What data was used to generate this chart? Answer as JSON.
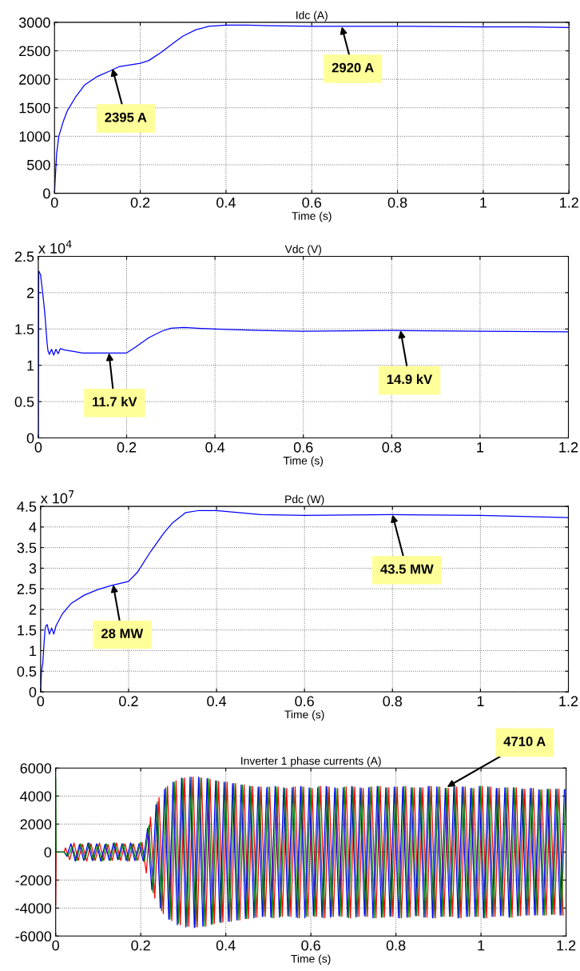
{
  "chart_data": [
    {
      "type": "line",
      "title": "Idc (A)",
      "xlabel": "Time (s)",
      "xlim": [
        0,
        1.2
      ],
      "xticks": [
        0,
        0.2,
        0.4,
        0.6,
        0.8,
        1,
        1.2
      ],
      "ylim": [
        0,
        3000
      ],
      "yticks": [
        0,
        500,
        1000,
        1500,
        2000,
        2500,
        3000
      ],
      "grid": true,
      "series": [
        {
          "color": "#0000ff",
          "x": [
            0,
            0.002,
            0.005,
            0.01,
            0.02,
            0.03,
            0.05,
            0.07,
            0.1,
            0.13,
            0.15,
            0.2,
            0.22,
            0.25,
            0.28,
            0.3,
            0.33,
            0.36,
            0.4,
            0.45,
            0.5,
            0.6,
            0.8,
            1.0,
            1.1,
            1.2
          ],
          "values": [
            0,
            300,
            700,
            1000,
            1250,
            1450,
            1700,
            1900,
            2050,
            2150,
            2220,
            2280,
            2330,
            2480,
            2650,
            2760,
            2870,
            2930,
            2950,
            2950,
            2940,
            2930,
            2930,
            2920,
            2920,
            2910
          ]
        }
      ],
      "annotations": [
        {
          "text": "2395 A",
          "x": 0.135,
          "y": 2190
        },
        {
          "text": "2920 A",
          "x": 0.67,
          "y": 2925
        }
      ]
    },
    {
      "type": "line",
      "title": "Vdc (V)",
      "xlabel": "Time (s)",
      "xlim": [
        0,
        1.2
      ],
      "xticks": [
        0,
        0.2,
        0.4,
        0.6,
        0.8,
        1,
        1.2
      ],
      "ylim": [
        0,
        2.5
      ],
      "yticks": [
        0,
        0.5,
        1,
        1.5,
        2,
        2.5
      ],
      "grid": true,
      "series": [
        {
          "color": "#0000ff",
          "x": [
            0,
            0.001,
            0.005,
            0.01,
            0.015,
            0.02,
            0.022,
            0.025,
            0.03,
            0.035,
            0.04,
            0.045,
            0.05,
            0.06,
            0.08,
            0.1,
            0.15,
            0.2,
            0.22,
            0.25,
            0.28,
            0.3,
            0.33,
            0.36,
            0.4,
            0.5,
            0.6,
            0.8,
            1.0,
            1.2
          ],
          "values": [
            0,
            2.3,
            2.25,
            2.0,
            1.7,
            1.3,
            1.2,
            1.15,
            1.22,
            1.14,
            1.22,
            1.16,
            1.23,
            1.21,
            1.19,
            1.17,
            1.17,
            1.17,
            1.25,
            1.38,
            1.47,
            1.51,
            1.52,
            1.51,
            1.5,
            1.48,
            1.47,
            1.48,
            1.47,
            1.46
          ]
        }
      ],
      "annotations": [
        "x 10$^{4}$",
        {
          "text": "11.7 kV",
          "x": 0.16,
          "y": 1.17
        },
        {
          "text": "14.9 kV",
          "x": 0.82,
          "y": 1.48
        }
      ]
    },
    {
      "type": "line",
      "title": "Pdc (W)",
      "xlabel": "Time (s)",
      "xlim": [
        0,
        1.2
      ],
      "xticks": [
        0,
        0.2,
        0.4,
        0.6,
        0.8,
        1,
        1.2
      ],
      "ylim": [
        0,
        4.5
      ],
      "yticks": [
        0,
        0.5,
        1,
        1.5,
        2,
        2.5,
        3,
        3.5,
        4,
        4.5
      ],
      "grid": true,
      "series": [
        {
          "color": "#0000ff",
          "x": [
            0,
            0.002,
            0.005,
            0.008,
            0.01,
            0.012,
            0.015,
            0.02,
            0.025,
            0.03,
            0.035,
            0.05,
            0.07,
            0.1,
            0.13,
            0.16,
            0.2,
            0.22,
            0.25,
            0.28,
            0.3,
            0.33,
            0.36,
            0.4,
            0.45,
            0.5,
            0.6,
            0.8,
            1.0,
            1.2
          ],
          "values": [
            0,
            0.5,
            0.7,
            1.2,
            1.5,
            1.6,
            1.63,
            1.4,
            1.55,
            1.4,
            1.6,
            1.9,
            2.15,
            2.35,
            2.48,
            2.58,
            2.68,
            2.9,
            3.4,
            3.85,
            4.1,
            4.35,
            4.4,
            4.4,
            4.35,
            4.3,
            4.28,
            4.3,
            4.28,
            4.23
          ]
        }
      ],
      "annotations": [
        "x 10$^{7}$",
        {
          "text": "28 MW",
          "x": 0.165,
          "y": 2.6
        },
        {
          "text": "43.5 MW",
          "x": 0.8,
          "y": 4.3
        }
      ]
    },
    {
      "type": "line",
      "title": "Inverter 1 phase currents (A)",
      "xlabel": "Time (s)",
      "xlim": [
        0,
        1.2
      ],
      "xticks": [
        0,
        0.2,
        0.4,
        0.6,
        0.8,
        1,
        1.2
      ],
      "ylim": [
        -6000,
        6000
      ],
      "yticks": [
        -6000,
        -4000,
        -2000,
        0,
        2000,
        4000,
        6000
      ],
      "grid": true,
      "series": [
        {
          "color": "#ff0000",
          "x": [
            0,
            0.001,
            0.02,
            0.023,
            0.033,
            0.043,
            0.053,
            0.063,
            0.073,
            0.083,
            0.093,
            0.103,
            0.113,
            0.123,
            0.133,
            0.143,
            0.153,
            0.163,
            0.173,
            0.183,
            0.193,
            0.203,
            0.213,
            0.223,
            0.233,
            0.243,
            0.253,
            0.263,
            0.273,
            0.283,
            0.293,
            0.303,
            0.313,
            0.323,
            0.333,
            0.343,
            0.353,
            0.363,
            0.373,
            0.383,
            0.393,
            0.403,
            0.413,
            0.423,
            0.433,
            0.443,
            0.453,
            0.463,
            0.473,
            0.483,
            0.493,
            0.503,
            0.513,
            0.523,
            0.533,
            0.543,
            0.553,
            0.563,
            0.573,
            0.583,
            0.593,
            0.603,
            0.613,
            0.623,
            0.633,
            0.643,
            0.653,
            0.663,
            0.673,
            0.683,
            0.693,
            0.703,
            0.713,
            0.723,
            0.733,
            0.743,
            0.753,
            0.763,
            0.773,
            0.783,
            0.793,
            0.803,
            0.813,
            0.823,
            0.833,
            0.843,
            0.853,
            0.863,
            0.873,
            0.883,
            0.893,
            0.903,
            0.913,
            0.923,
            0.933,
            0.943,
            0.953,
            0.963,
            0.973,
            0.983,
            0.993,
            1.003,
            1.013,
            1.023,
            1.033,
            1.043,
            1.053,
            1.063,
            1.073,
            1.083,
            1.093,
            1.103,
            1.113,
            1.123,
            1.133,
            1.143,
            1.153,
            1.163,
            1.173,
            1.183,
            1.193
          ],
          "values": [
            -3800,
            0,
            0,
            300,
            -550,
            650,
            -600,
            550,
            -650,
            600,
            -600,
            650,
            -600,
            550,
            -600,
            650,
            -600,
            600,
            -650,
            600,
            -600,
            700,
            -1500,
            2500,
            -3300,
            3900,
            -4400,
            4700,
            -4900,
            5100,
            -5200,
            5300,
            -5300,
            5350,
            -5350,
            5300,
            -5300,
            5200,
            -5100,
            5050,
            -5000,
            5000,
            -4950,
            4900,
            -4850,
            4800,
            -4750,
            4700,
            -4650,
            4650,
            -4600,
            4650,
            -4700,
            4650,
            -4600,
            4550,
            -4600,
            4650,
            -4700,
            4650,
            -4600,
            4550,
            -4600,
            4700,
            -4700,
            4650,
            -4600,
            4550,
            -4600,
            4650,
            -4700,
            4650,
            -4600,
            4550,
            -4600,
            4650,
            -4700,
            4700,
            -4650,
            4600,
            -4600,
            4650,
            -4700,
            4700,
            -4650,
            4600,
            -4550,
            4600,
            -4650,
            4700,
            -4700,
            4650,
            -4600,
            4550,
            -4600,
            4650,
            -4700,
            4650,
            -4600,
            4550,
            -4600,
            4700,
            -4700,
            4650,
            -4600,
            4550,
            -4550,
            4600,
            -4650,
            4600,
            -4550,
            4500,
            -4500,
            4550,
            -4500,
            4450,
            -4500,
            4500,
            -4450,
            4500,
            -4500
          ]
        },
        {
          "color": "#0000ff",
          "x": [
            0,
            0.02,
            0.026,
            0.036,
            0.046,
            0.056,
            0.066,
            0.076,
            0.086,
            0.096,
            0.106,
            0.116,
            0.126,
            0.136,
            0.146,
            0.156,
            0.166,
            0.176,
            0.186,
            0.196,
            0.206,
            0.216,
            0.226,
            0.236,
            0.246,
            0.256,
            0.266,
            0.276,
            0.286,
            0.296,
            0.306,
            0.316,
            0.326,
            0.336,
            0.346,
            0.356,
            0.366,
            0.376,
            0.386,
            0.396,
            0.406,
            0.416,
            0.426,
            0.436,
            0.446,
            0.456,
            0.466,
            0.476,
            0.486,
            0.496,
            0.506,
            0.516,
            0.526,
            0.536,
            0.546,
            0.556,
            0.566,
            0.576,
            0.586,
            0.596,
            0.606,
            0.616,
            0.626,
            0.636,
            0.646,
            0.656,
            0.666,
            0.676,
            0.686,
            0.696,
            0.706,
            0.716,
            0.726,
            0.736,
            0.746,
            0.756,
            0.766,
            0.776,
            0.786,
            0.796,
            0.806,
            0.816,
            0.826,
            0.836,
            0.846,
            0.856,
            0.866,
            0.876,
            0.886,
            0.896,
            0.906,
            0.916,
            0.926,
            0.936,
            0.946,
            0.956,
            0.966,
            0.976,
            0.986,
            0.996,
            1.006,
            1.016,
            1.026,
            1.036,
            1.046,
            1.056,
            1.066,
            1.076,
            1.086,
            1.096,
            1.106,
            1.116,
            1.126,
            1.136,
            1.146,
            1.156,
            1.166,
            1.176,
            1.186,
            1.196
          ],
          "values": [
            0,
            0,
            -300,
            600,
            -650,
            550,
            -600,
            650,
            -600,
            600,
            -650,
            550,
            -600,
            650,
            -550,
            600,
            -600,
            650,
            -600,
            600,
            -650,
            1700,
            -2700,
            3400,
            -4000,
            4500,
            -4800,
            5000,
            -5200,
            5300,
            -5350,
            5350,
            -5400,
            5350,
            -5300,
            5250,
            -5150,
            5100,
            -5000,
            5000,
            -4950,
            4900,
            -4850,
            4800,
            -4750,
            4700,
            -4700,
            4650,
            -4600,
            4600,
            -4650,
            4700,
            -4650,
            4600,
            -4550,
            4600,
            -4650,
            4700,
            -4700,
            4600,
            -4550,
            4600,
            -4650,
            4700,
            -4650,
            4600,
            -4550,
            4600,
            -4650,
            4700,
            -4650,
            4600,
            -4550,
            4600,
            -4700,
            4700,
            -4650,
            4600,
            -4600,
            4650,
            -4700,
            4650,
            -4650,
            4600,
            -4550,
            4600,
            -4650,
            4700,
            -4700,
            4650,
            -4600,
            4550,
            -4600,
            4650,
            -4700,
            4650,
            -4600,
            4550,
            -4600,
            4700,
            -4700,
            4650,
            -4600,
            4550,
            -4550,
            4600,
            -4650,
            4600,
            -4550,
            4500,
            -4500,
            4550,
            -4500,
            4450,
            -4500,
            4500,
            -4450,
            4500,
            -4500,
            4450
          ]
        },
        {
          "color": "#008000",
          "x": [
            0,
            0.001,
            0.02,
            0.029,
            0.039,
            0.049,
            0.059,
            0.069,
            0.079,
            0.089,
            0.099,
            0.109,
            0.119,
            0.129,
            0.139,
            0.149,
            0.159,
            0.169,
            0.179,
            0.189,
            0.199,
            0.209,
            0.219,
            0.229,
            0.239,
            0.249,
            0.259,
            0.269,
            0.279,
            0.289,
            0.299,
            0.309,
            0.319,
            0.329,
            0.339,
            0.349,
            0.359,
            0.369,
            0.379,
            0.389,
            0.399,
            0.409,
            0.419,
            0.429,
            0.439,
            0.449,
            0.459,
            0.469,
            0.479,
            0.489,
            0.499,
            0.509,
            0.519,
            0.529,
            0.539,
            0.549,
            0.559,
            0.569,
            0.579,
            0.589,
            0.599,
            0.609,
            0.619,
            0.629,
            0.639,
            0.649,
            0.659,
            0.669,
            0.679,
            0.689,
            0.699,
            0.709,
            0.719,
            0.729,
            0.739,
            0.749,
            0.759,
            0.769,
            0.779,
            0.789,
            0.799,
            0.809,
            0.819,
            0.829,
            0.839,
            0.849,
            0.859,
            0.869,
            0.879,
            0.889,
            0.899,
            0.909,
            0.919,
            0.929,
            0.939,
            0.949,
            0.959,
            0.969,
            0.979,
            0.989,
            0.999,
            1.009,
            1.019,
            1.029,
            1.039,
            1.049,
            1.059,
            1.069,
            1.079,
            1.089,
            1.099,
            1.109,
            1.119,
            1.129,
            1.139,
            1.149,
            1.159,
            1.169,
            1.179,
            1.189,
            1.199
          ],
          "values": [
            5300,
            0,
            0,
            -300,
            400,
            -600,
            600,
            -550,
            650,
            -600,
            550,
            -650,
            600,
            -600,
            650,
            -550,
            600,
            -650,
            600,
            -600,
            700,
            -650,
            1900,
            -2900,
            3600,
            -4200,
            4600,
            -4800,
            5000,
            -5100,
            5250,
            -5300,
            5350,
            -5350,
            5300,
            -5300,
            5250,
            -5150,
            5100,
            -5050,
            5000,
            -4950,
            4900,
            -4850,
            4800,
            -4750,
            4700,
            -4650,
            4650,
            -4600,
            4650,
            -4700,
            4650,
            -4600,
            4550,
            -4600,
            4650,
            -4700,
            4650,
            -4600,
            4550,
            -4600,
            4700,
            -4700,
            4650,
            -4600,
            4550,
            -4600,
            4650,
            -4700,
            4650,
            -4600,
            4550,
            -4600,
            4650,
            -4700,
            4700,
            -4650,
            4600,
            -4600,
            4650,
            -4700,
            4700,
            -4650,
            4600,
            -4550,
            4600,
            -4650,
            4700,
            -4700,
            4650,
            -4600,
            4550,
            -4600,
            4650,
            -4700,
            4650,
            -4600,
            4550,
            -4600,
            4700,
            -4700,
            4650,
            -4600,
            4550,
            -4550,
            4600,
            -4650,
            4600,
            -4550,
            4500,
            -4500,
            4550,
            -4500,
            4450,
            -4500,
            4500,
            -4450,
            4500,
            -4500,
            4500
          ]
        }
      ],
      "annotations": [
        {
          "text": "4710 A",
          "x": 0.92,
          "y": 4650
        }
      ]
    }
  ]
}
